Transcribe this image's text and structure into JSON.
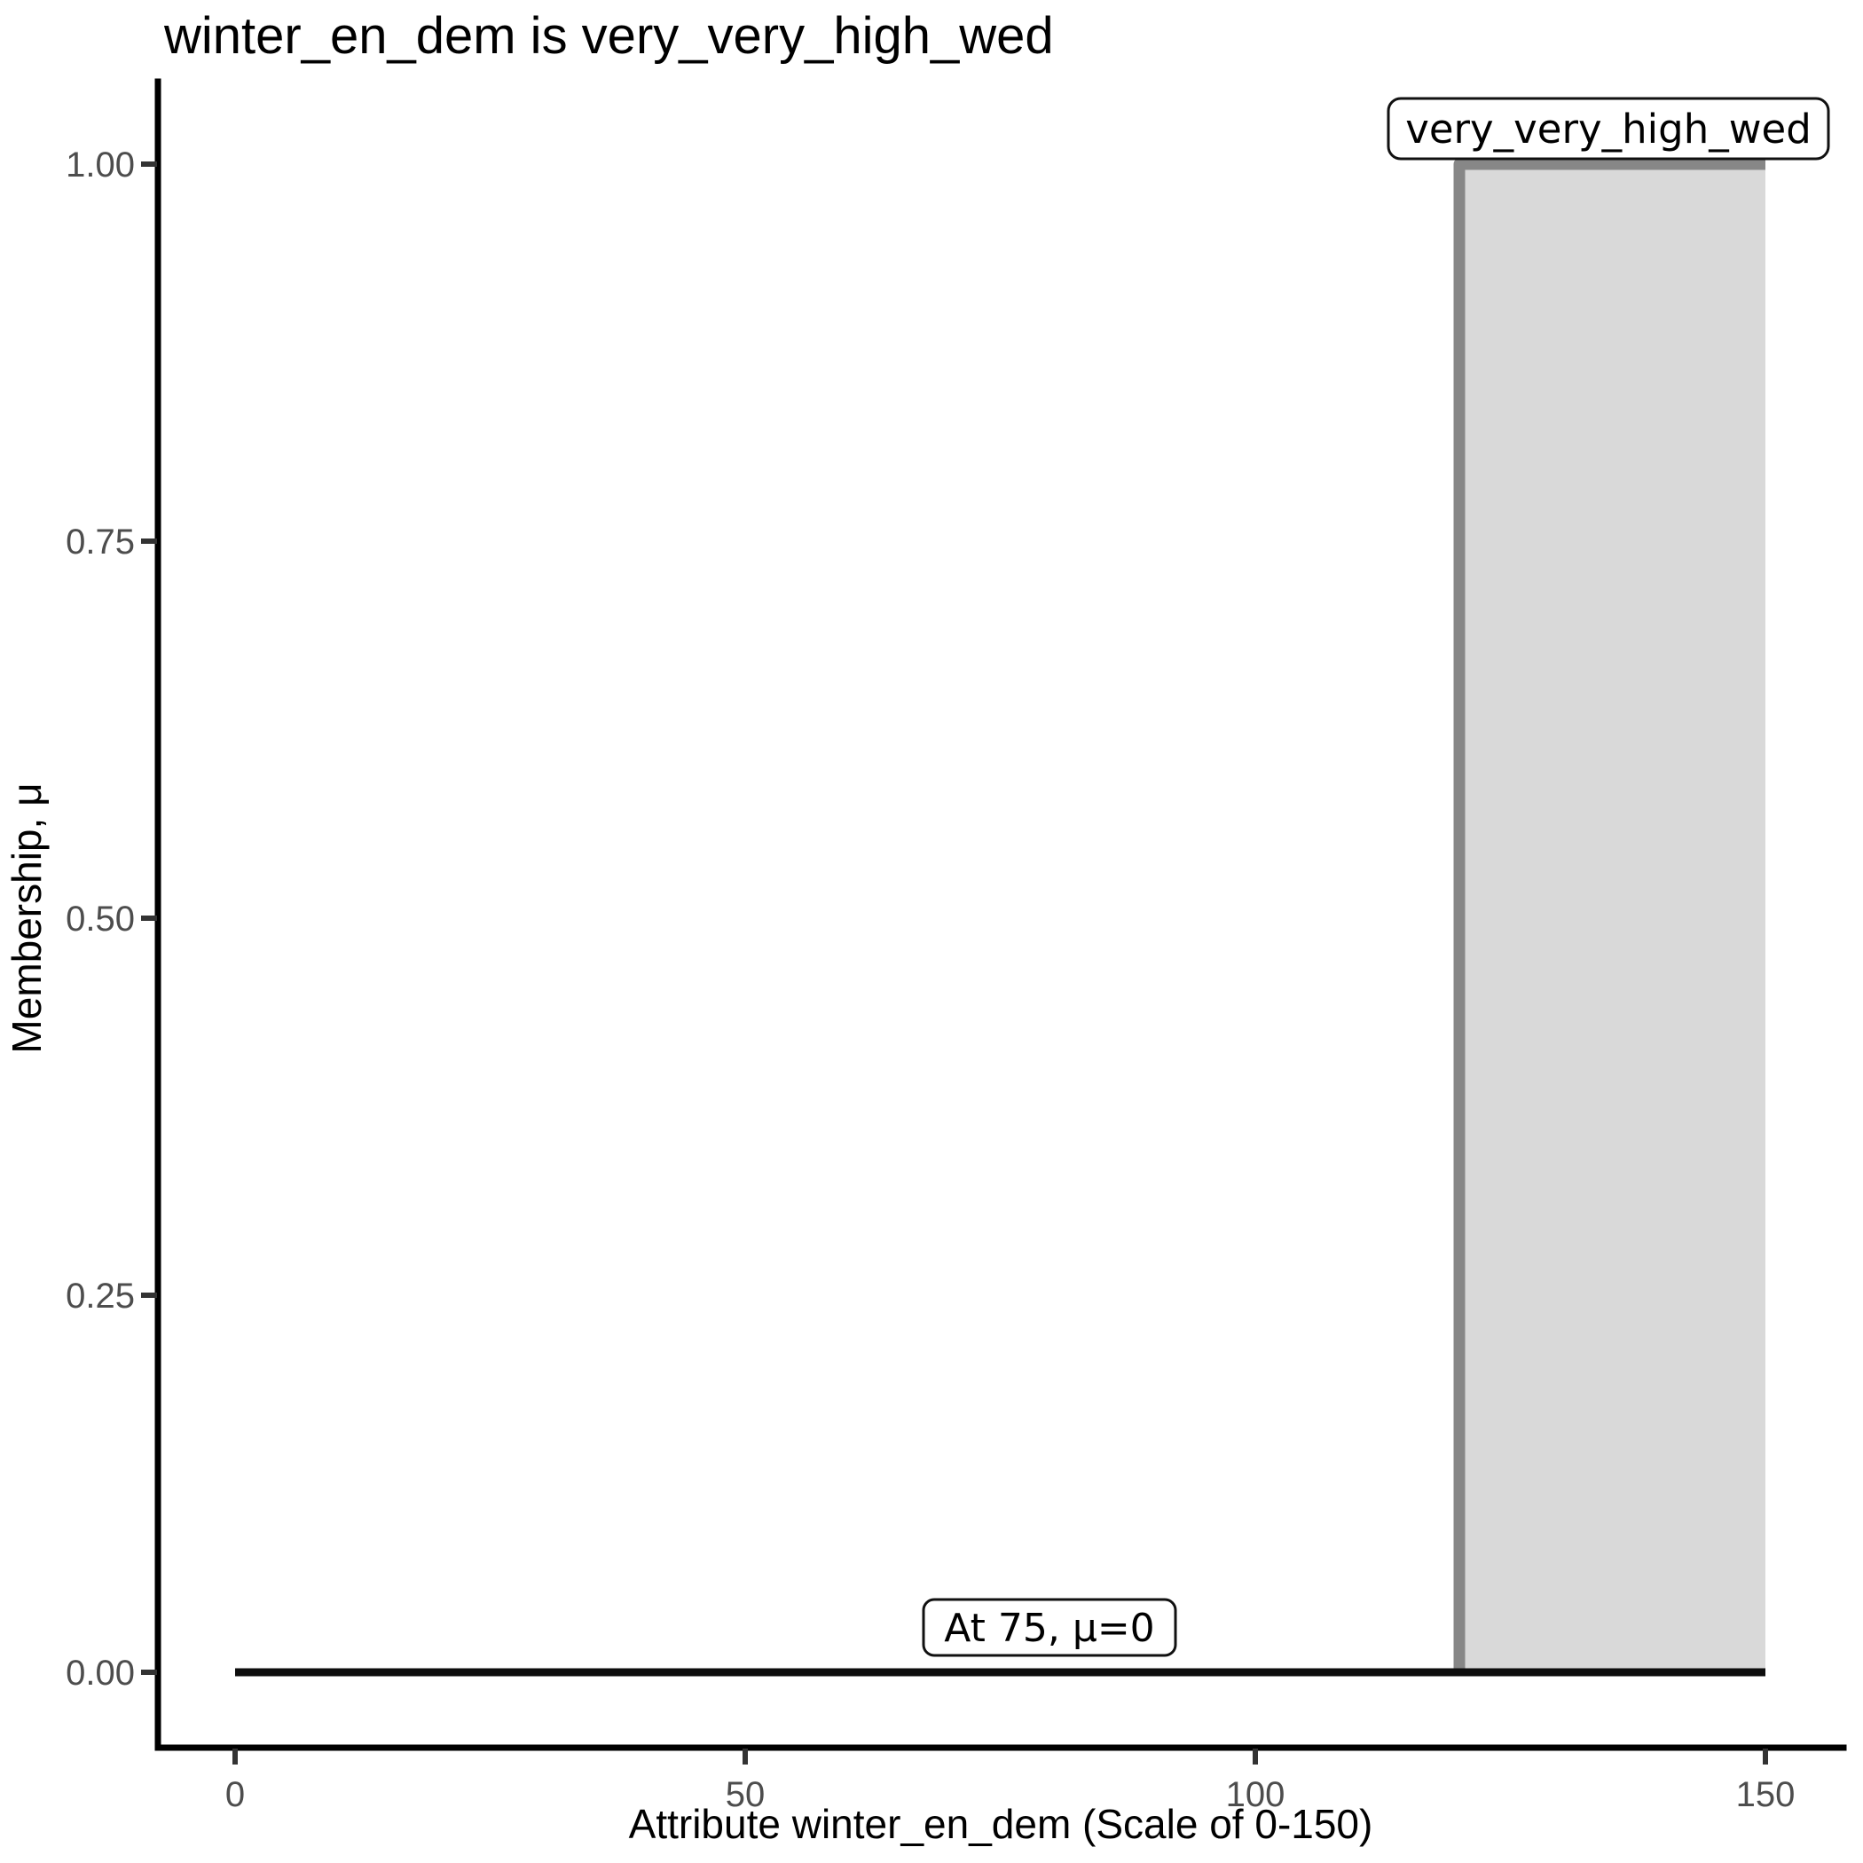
{
  "chart_data": {
    "type": "area",
    "title": "winter_en_dem is very_very_high_wed",
    "xlabel": "Attribute winter_en_dem (Scale of 0-150)",
    "ylabel": "Membership, μ",
    "xlim": [
      0,
      150
    ],
    "ylim": [
      0.0,
      1.0
    ],
    "grid": false,
    "legend_position": "none",
    "x_tick_labels": [
      "0",
      "50",
      "100",
      "150"
    ],
    "x_tick_values": [
      0,
      50,
      100,
      150
    ],
    "y_tick_labels": [
      "1.00",
      "0.75",
      "0.50",
      "0.25",
      "0.00"
    ],
    "y_tick_values": [
      1.0,
      0.75,
      0.5,
      0.25,
      0.0
    ],
    "series": [
      {
        "name": "fuzzy-set-very_very_high_wed",
        "kind": "step-area",
        "points": [
          [
            120,
            0
          ],
          [
            120,
            1
          ],
          [
            150,
            1
          ]
        ],
        "fill": "#d9d9d9",
        "stroke": "#878787",
        "stroke_width": 13
      },
      {
        "name": "membership-result-baseline",
        "kind": "line",
        "points": [
          [
            0,
            0
          ],
          [
            150,
            0
          ]
        ],
        "fill": null,
        "stroke": "#0d0d0d",
        "stroke_width": 9
      }
    ],
    "annotations": [
      {
        "label": "very_very_high_wed",
        "at": "top of fuzzy set, x≈135, μ≈1"
      },
      {
        "label": "At 75, μ=0",
        "at": "x=75, μ=0"
      }
    ],
    "colors": {
      "set_fill": "#d9d9d9",
      "set_line": "#878787",
      "result_line": "#0d0d0d",
      "axis_text": "#4d4d4d",
      "text": "#000000",
      "background": "#ffffff"
    }
  }
}
